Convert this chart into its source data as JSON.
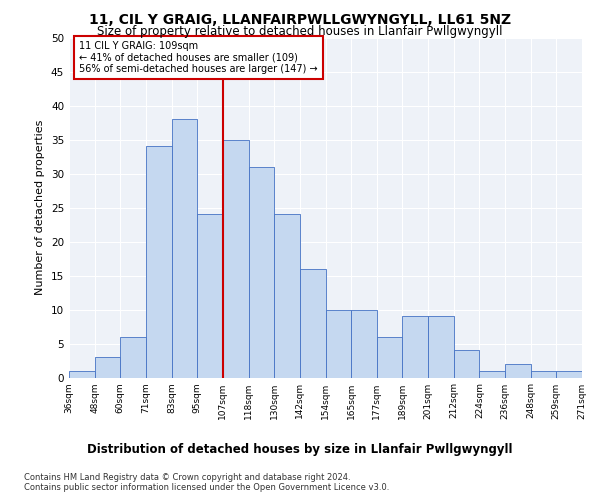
{
  "title1": "11, CIL Y GRAIG, LLANFAIRPWLLGWYNGYLL, LL61 5NZ",
  "title2": "Size of property relative to detached houses in Llanfair Pwllgwyngyll",
  "xlabel": "Distribution of detached houses by size in Llanfair Pwllgwyngyll",
  "ylabel": "Number of detached properties",
  "bar_values": [
    1,
    3,
    6,
    34,
    38,
    24,
    35,
    31,
    24,
    16,
    10,
    10,
    6,
    9,
    9,
    4,
    1,
    2,
    1,
    1
  ],
  "bar_labels": [
    "36sqm",
    "48sqm",
    "60sqm",
    "71sqm",
    "83sqm",
    "95sqm",
    "107sqm",
    "118sqm",
    "130sqm",
    "142sqm",
    "154sqm",
    "165sqm",
    "177sqm",
    "189sqm",
    "201sqm",
    "212sqm",
    "224sqm",
    "236sqm",
    "248sqm",
    "259sqm",
    "271sqm"
  ],
  "bar_color": "#c5d8f0",
  "bar_edge_color": "#4472c4",
  "vline_x_index": 6,
  "vline_color": "#cc0000",
  "annotation_text": "11 CIL Y GRAIG: 109sqm\n← 41% of detached houses are smaller (109)\n56% of semi-detached houses are larger (147) →",
  "annotation_box_color": "#cc0000",
  "ylim": [
    0,
    50
  ],
  "yticks": [
    0,
    5,
    10,
    15,
    20,
    25,
    30,
    35,
    40,
    45,
    50
  ],
  "bg_color": "#eef2f8",
  "footnote": "Contains HM Land Registry data © Crown copyright and database right 2024.\nContains public sector information licensed under the Open Government Licence v3.0.",
  "title1_fontsize": 10,
  "title2_fontsize": 8.5,
  "xlabel_fontsize": 8.5,
  "ylabel_fontsize": 8
}
